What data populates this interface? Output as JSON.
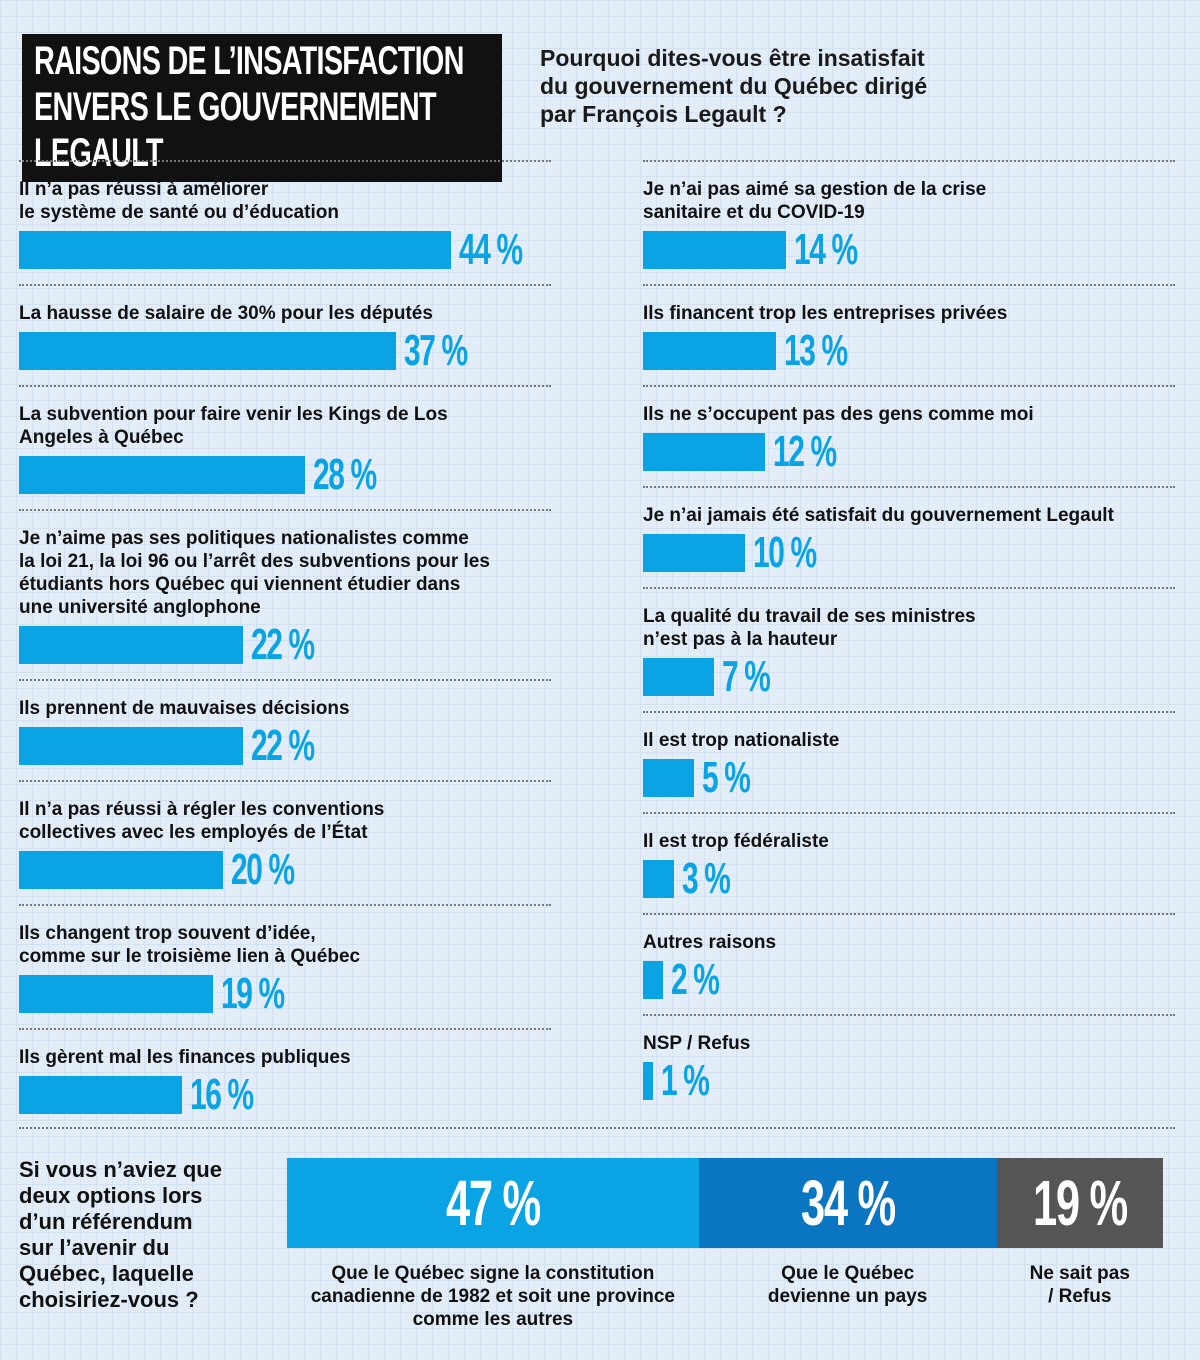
{
  "chart_data": [
    {
      "type": "hbar",
      "title": "RAISONS DE L’INSATISFACTION\nENVERS LE GOUVERNEMENT LEGAULT",
      "subtitle": "Pourquoi dites-vous être insatisfait\ndu gouvernement du Québec dirigé\npar François Legault ?",
      "categories": [
        "Il n’a pas réussi à améliorer\nle système de santé ou d’éducation",
        "La hausse de salaire de 30% pour les députés",
        "La subvention pour faire venir les Kings de Los\nAngeles à Québec",
        "Je n’aime pas ses politiques nationalistes comme\nla loi 21, la loi 96 ou l’arrêt des subventions pour les\nétudiants hors Québec qui viennent étudier dans\nune université anglophone",
        "Ils prennent de mauvaises décisions",
        "Il n’a pas réussi à régler les conventions\ncollectives avec les employés de l’État",
        "Ils changent trop souvent d’idée,\ncomme sur le troisième lien à Québec",
        "Ils gèrent mal les finances publiques",
        "Je n’ai pas aimé sa gestion de la crise\nsanitaire et du COVID-19",
        "Ils financent trop les entreprises privées",
        "Ils ne s’occupent pas des gens comme moi",
        "Je n’ai jamais été satisfait du gouvernement Legault",
        "La qualité du travail de ses ministres\n n’est pas à la hauteur",
        "Il est trop nationaliste",
        "Il est trop fédéraliste",
        "Autres raisons",
        "NSP / Refus"
      ],
      "values": [
        44,
        37,
        28,
        22,
        22,
        20,
        19,
        16,
        14,
        13,
        12,
        10,
        7,
        5,
        3,
        2,
        1
      ],
      "value_labels": [
        "44 %",
        "37 %",
        "28 %",
        "22 %",
        "22 %",
        "20 %",
        "19 %",
        "16 %",
        "14 %",
        "13 %",
        "12 %",
        "10 %",
        "7 %",
        "5 %",
        "3 %",
        "2 %",
        "1 %"
      ],
      "color": "#0aa3e3"
    },
    {
      "type": "stacked_hbar",
      "title": "Si vous n’aviez que\ndeux options lors\nd’un référendum\nsur l’avenir du\nQuébec, laquelle\nchoisiriez-vous ?",
      "categories": [
        "Que le Québec signe la constitution\ncanadienne de 1982 et soit une province\ncomme les autres",
        "Que le Québec\ndevienne un pays",
        "Ne sait pas\n/ Refus"
      ],
      "values": [
        47,
        34,
        19
      ],
      "value_labels": [
        "47 %",
        "34 %",
        "19 %"
      ],
      "colors": [
        "#0aa3e3",
        "#0a76c2",
        "#555555"
      ]
    }
  ]
}
